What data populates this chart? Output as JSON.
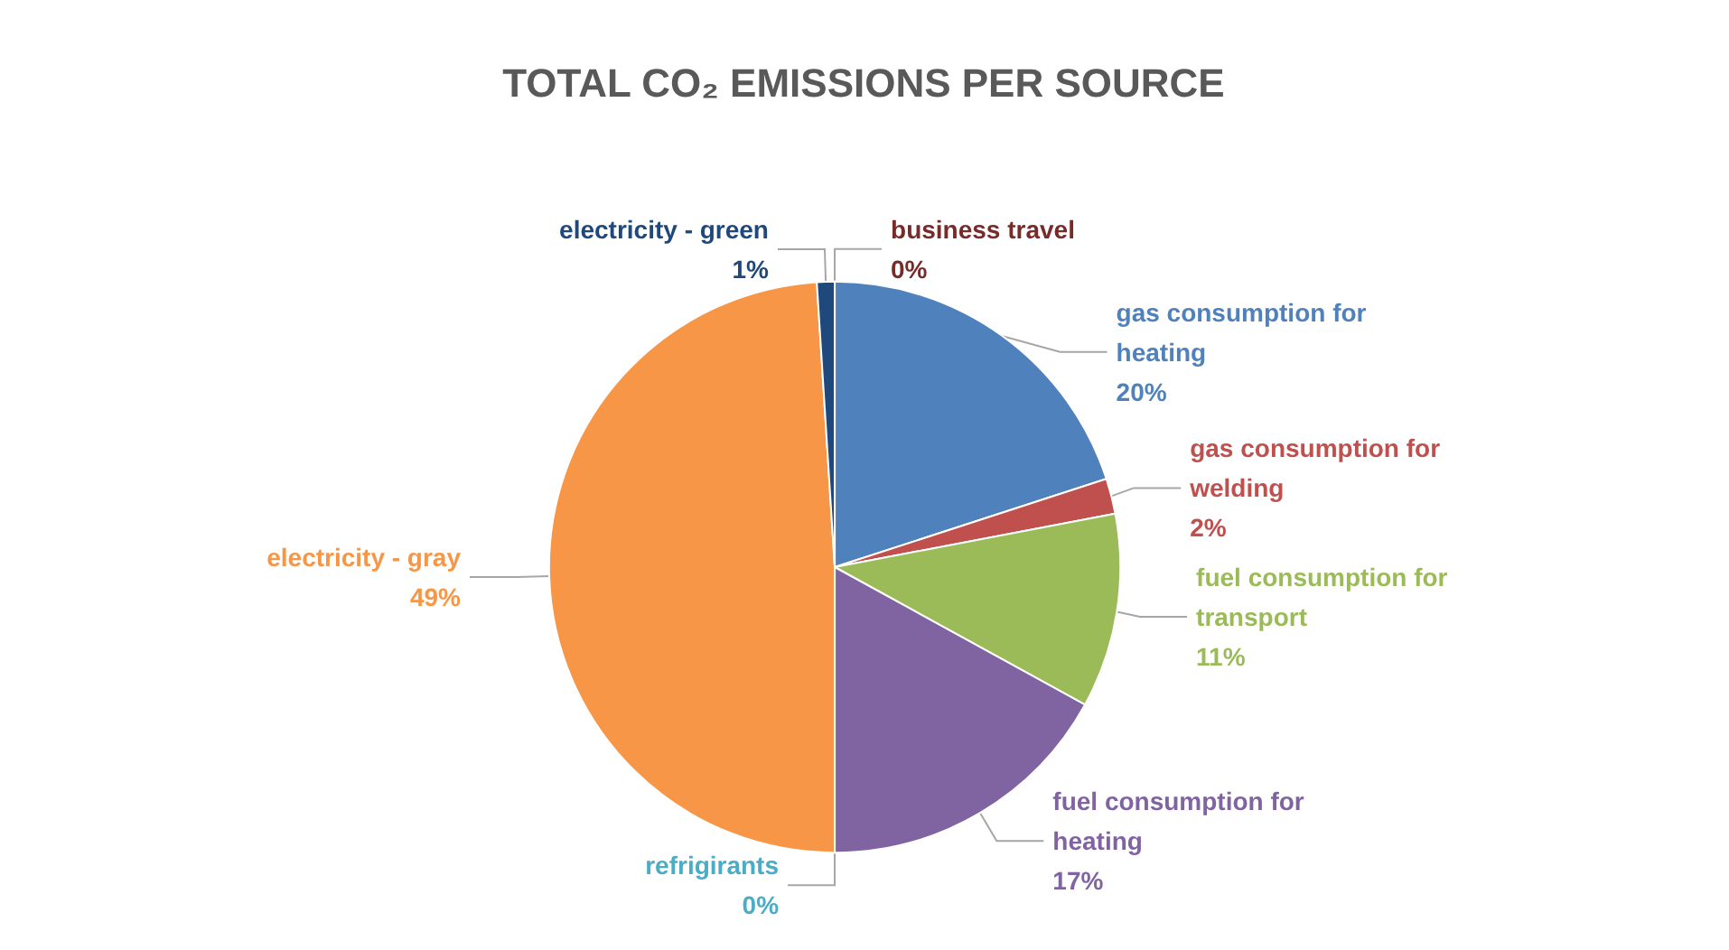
{
  "chart_data": {
    "type": "pie",
    "title": "TOTAL CO₂ EMISSIONS PER SOURCE",
    "categories": [
      "gas consumption for heating",
      "gas consumption for welding",
      "fuel consumption for transport",
      "fuel consumption for heating",
      "refrigirants",
      "electricity - gray",
      "electricity - green",
      "business travel"
    ],
    "values": [
      20,
      2,
      11,
      17,
      0,
      49,
      1,
      0
    ],
    "value_labels": [
      "20%",
      "2%",
      "11%",
      "17%",
      "0%",
      "49%",
      "1%",
      "0%"
    ],
    "colors": [
      "#4f81bd",
      "#c0504d",
      "#9bbb59",
      "#8064a2",
      "#4bacc6",
      "#f79646",
      "#1f497d",
      "#772c2a"
    ]
  }
}
